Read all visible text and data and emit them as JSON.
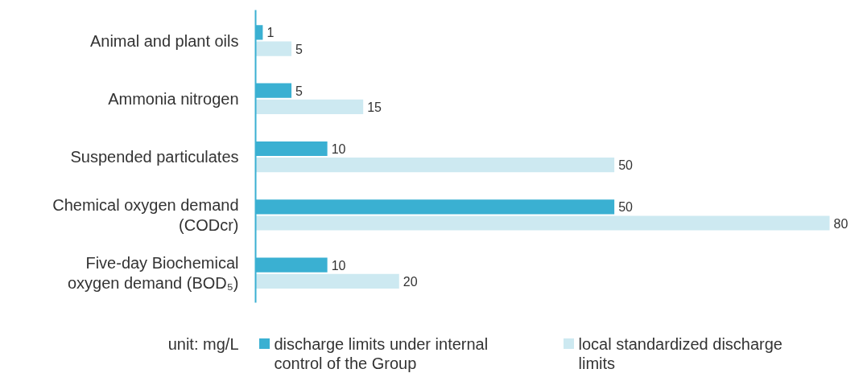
{
  "chart_data": {
    "type": "bar",
    "orientation": "horizontal",
    "data_labels": true,
    "categories": [
      "Animal and plant oils",
      "Ammonia nitrogen",
      "Suspended particulates",
      "Chemical oxygen demand (CODcr)",
      "Five-day Biochemical oxygen demand (BOD₅)"
    ],
    "series": [
      {
        "name": "discharge limits under internal control of the Group",
        "color": "#3ab0d2",
        "values": [
          1,
          5,
          10,
          50,
          10
        ]
      },
      {
        "name": "local standardized discharge limits",
        "color": "#cde9f1",
        "values": [
          5,
          15,
          50,
          80,
          20
        ]
      }
    ],
    "legend": "bottom",
    "annotations": [
      "unit: mg/L"
    ]
  }
}
